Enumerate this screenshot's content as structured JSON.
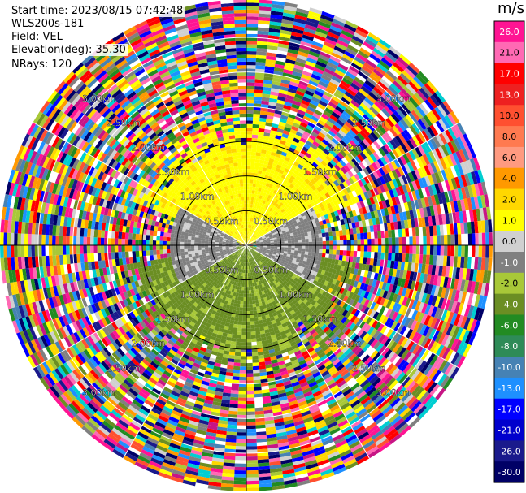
{
  "header": {
    "start_time": "Start time: 2023/08/15 07:42:48",
    "instrument": "WLS200s-181",
    "field": "Field: VEL",
    "elevation": "Elevation(deg): 35.30",
    "nrays": "NRays: 120"
  },
  "chart_data": {
    "type": "heatmap",
    "subtype": "polar-ppi",
    "units": "m/s",
    "range_ring_labels": [
      "0.50km",
      "1.00km",
      "1.50km",
      "2.00km",
      "2.50km",
      "3.00km"
    ],
    "range_rings_km": [
      0.5,
      1.0,
      1.5,
      2.0,
      2.5,
      3.0
    ],
    "max_range_km": 3.55,
    "n_rays": 120,
    "colorbar": {
      "tick_labels": [
        "26.0",
        "21.0",
        "17.0",
        "13.0",
        "10.0",
        "8.0",
        "6.0",
        "4.0",
        "2.0",
        "1.0",
        "0.0",
        "-1.0",
        "-2.0",
        "-4.0",
        "-6.0",
        "-8.0",
        "-10.0",
        "-13.0",
        "-17.0",
        "-21.0",
        "-26.0",
        "-30.0"
      ],
      "colors": [
        "#ff1493",
        "#ff69b4",
        "#ff0000",
        "#ee2020",
        "#ff5030",
        "#ff7a50",
        "#ff9a80",
        "#ff9900",
        "#ffd700",
        "#ffff00",
        "#d0d0d0",
        "#808080",
        "#a8c838",
        "#6b8e23",
        "#228b22",
        "#2e8b57",
        "#4682b4",
        "#1e90ff",
        "#0000ff",
        "#0000cd",
        "#1a1a8c",
        "#000066"
      ]
    },
    "noise_palette": [
      "#ff1493",
      "#ff69b4",
      "#ff0000",
      "#ff5030",
      "#ff9900",
      "#ffd700",
      "#ffff00",
      "#d0d0d0",
      "#808080",
      "#a8c838",
      "#6b8e23",
      "#228b22",
      "#4682b4",
      "#1e90ff",
      "#0000ff",
      "#1a1a8c",
      "#000066",
      "#ffffff",
      "#c71585",
      "#00ced1"
    ],
    "signal_regions": [
      {
        "description": "north sector positive velocity",
        "az_start": 290,
        "az_end": 70,
        "range_min_km": 0.0,
        "range_max_km": 1.9,
        "color_main": "#ffff00",
        "color_alt": "#ffd700"
      },
      {
        "description": "south sector negative velocity",
        "az_start": 100,
        "az_end": 260,
        "range_min_km": 0.0,
        "range_max_km": 1.9,
        "color_main": "#6b8e23",
        "color_alt": "#a8c838"
      },
      {
        "description": "near-zero band",
        "az_start": 60,
        "az_end": 120,
        "range_min_km": 0.15,
        "range_max_km": 1.1,
        "color_main": "#808080",
        "color_alt": "#d0d0d0"
      },
      {
        "description": "near-zero band west",
        "az_start": 240,
        "az_end": 300,
        "range_min_km": 0.15,
        "range_max_km": 1.1,
        "color_main": "#808080",
        "color_alt": "#d0d0d0"
      }
    ]
  }
}
